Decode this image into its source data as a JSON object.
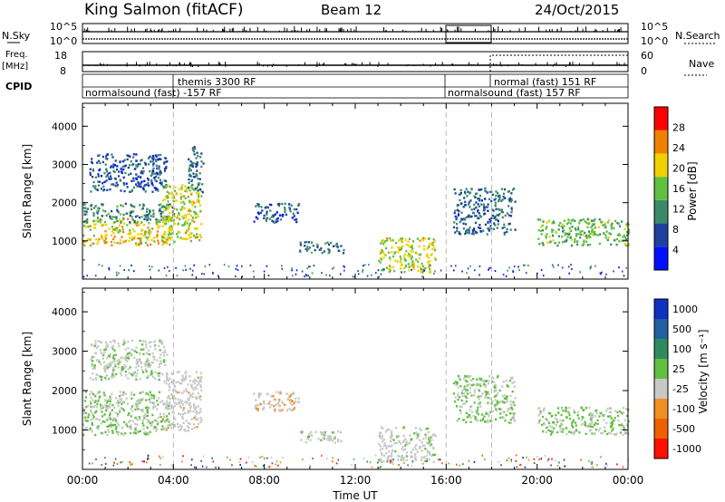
{
  "header": {
    "station": "King Salmon (fitACF)",
    "beam": "Beam 12",
    "date": "24/Oct/2015"
  },
  "strip": {
    "nsky_label": "N.Sky",
    "nsky_ticks": [
      "10^5",
      "10^0"
    ],
    "nsearch_label": "N.Search",
    "nsearch_ticks": [
      "10^5",
      "10^0"
    ],
    "freq_label_1": "Freq.",
    "freq_label_2": "[MHz]",
    "freq_ticks": [
      "18",
      "8"
    ],
    "nave_label": "Nave",
    "nave_ticks": [
      "60",
      "0"
    ],
    "cpid_label": "CPID"
  },
  "cpid_segments": [
    {
      "text": "themis 3300 RF"
    },
    {
      "text": "normalsound (fast) -157 RF"
    },
    {
      "text": "normalsound (fast) 157 RF"
    },
    {
      "text": "normal (fast) 151 RF"
    }
  ],
  "axes": {
    "xlabel": "Time UT",
    "x_ticks": [
      "00:00",
      "04:00",
      "08:00",
      "12:00",
      "16:00",
      "20:00",
      "00:00"
    ],
    "ylabel": "Slant Range [km]",
    "y_ticks": [
      "1000",
      "2000",
      "3000",
      "4000"
    ]
  },
  "colorbars": {
    "power": {
      "label": "Power [dB]",
      "ticks": [
        "4",
        "8",
        "12",
        "16",
        "20",
        "24",
        "28"
      ],
      "colors": [
        "#0010ff",
        "#2040a0",
        "#3a8a6a",
        "#60c040",
        "#f0d000",
        "#f08000",
        "#ff0000"
      ]
    },
    "velocity": {
      "label": "Velocity [m s⁻¹]",
      "ticks": [
        "1000",
        "500",
        "100",
        "25",
        "-25",
        "-100",
        "-500",
        "-1000"
      ],
      "colors": [
        "#1030c0",
        "#2060a0",
        "#308a60",
        "#60c040",
        "#c8c8c8",
        "#f09020",
        "#f06000",
        "#ff1000"
      ]
    }
  },
  "chart_data": [
    {
      "type": "heatmap",
      "title": "Power",
      "xlabel": "Time UT",
      "ylabel": "Slant Range [km]",
      "xlim": [
        "00:00",
        "24:00"
      ],
      "ylim": [
        0,
        4600
      ],
      "colorbar": "Power [dB]",
      "color_range": [
        0,
        30
      ],
      "regions": [
        {
          "t0": 0.0,
          "t1": 4.0,
          "r0": 900,
          "r1": 1600,
          "value": 20
        },
        {
          "t0": 0.0,
          "t1": 4.0,
          "r0": 1500,
          "r1": 2000,
          "value": 10
        },
        {
          "t0": 0.3,
          "t1": 3.7,
          "r0": 2300,
          "r1": 3300,
          "value": 6
        },
        {
          "t0": 3.5,
          "t1": 5.2,
          "r0": 1000,
          "r1": 2500,
          "value": 18
        },
        {
          "t0": 4.6,
          "t1": 5.3,
          "r0": 2300,
          "r1": 3500,
          "value": 8
        },
        {
          "t0": 7.5,
          "t1": 9.5,
          "r0": 1500,
          "r1": 2000,
          "value": 6
        },
        {
          "t0": 9.5,
          "t1": 11.5,
          "r0": 700,
          "r1": 1000,
          "value": 8
        },
        {
          "t0": 13.0,
          "t1": 15.5,
          "r0": 200,
          "r1": 1100,
          "value": 18
        },
        {
          "t0": 16.3,
          "t1": 19.0,
          "r0": 1200,
          "r1": 2400,
          "value": 7
        },
        {
          "t0": 20.0,
          "t1": 24.0,
          "r0": 900,
          "r1": 1600,
          "value": 14
        }
      ]
    },
    {
      "type": "heatmap",
      "title": "Velocity",
      "xlabel": "Time UT",
      "ylabel": "Slant Range [km]",
      "xlim": [
        "00:00",
        "24:00"
      ],
      "ylim": [
        0,
        4600
      ],
      "colorbar": "Velocity [m s⁻¹]",
      "color_range": [
        -1000,
        1000
      ],
      "regions": [
        {
          "t0": 0.0,
          "t1": 4.0,
          "r0": 900,
          "r1": 2000,
          "value": 0
        },
        {
          "t0": 0.3,
          "t1": 3.7,
          "r0": 2300,
          "r1": 3300,
          "value": -50
        },
        {
          "t0": 3.5,
          "t1": 5.2,
          "r0": 1000,
          "r1": 2500,
          "value": -150
        },
        {
          "t0": 7.5,
          "t1": 9.5,
          "r0": 1500,
          "r1": 2000,
          "value": -200
        },
        {
          "t0": 9.5,
          "t1": 11.5,
          "r0": 700,
          "r1": 1000,
          "value": -100
        },
        {
          "t0": 13.0,
          "t1": 15.5,
          "r0": 200,
          "r1": 1100,
          "value": -100
        },
        {
          "t0": 16.3,
          "t1": 19.0,
          "r0": 1200,
          "r1": 2400,
          "value": 0
        },
        {
          "t0": 20.0,
          "t1": 24.0,
          "r0": 900,
          "r1": 1600,
          "value": 0
        }
      ]
    }
  ]
}
